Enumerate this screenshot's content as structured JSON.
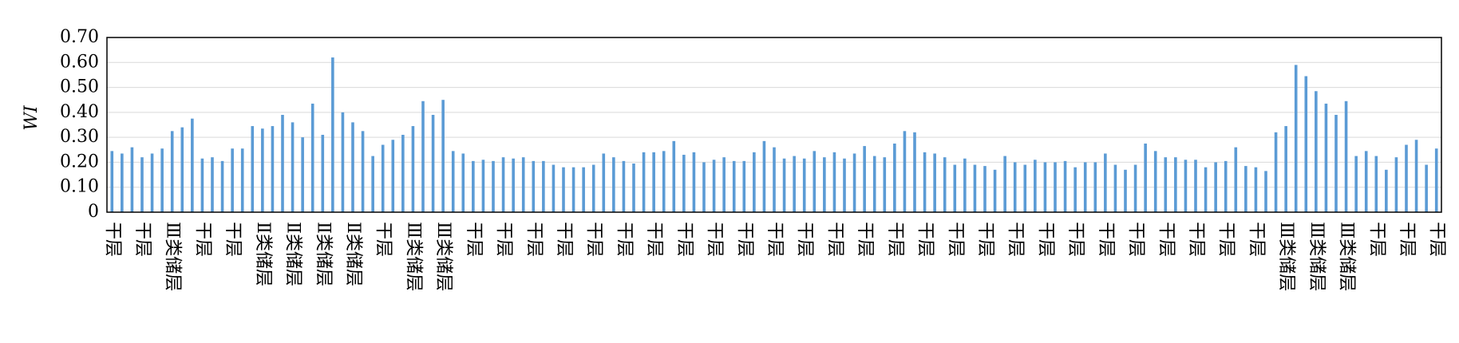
{
  "chart_data": {
    "type": "bar",
    "y_label": "WI",
    "color": "#5b9bd5",
    "grid": true,
    "ylim": [
      0,
      0.7
    ],
    "yticks": [
      0,
      {
        "value": 0.1,
        "label": "0.10"
      },
      {
        "value": 0.2,
        "label": "0.20"
      },
      {
        "value": 0.3,
        "label": "0.30"
      },
      {
        "value": 0.4,
        "label": "0.40"
      },
      {
        "value": 0.5,
        "label": "0.50"
      },
      {
        "value": 0.6,
        "label": "0.60"
      },
      {
        "value": 0.7,
        "label": "0.70"
      }
    ],
    "categories": [
      "干层",
      null,
      null,
      "干层",
      null,
      null,
      "Ⅲ类储层",
      null,
      null,
      "干层",
      null,
      null,
      "干层",
      null,
      null,
      "Ⅱ类储层",
      null,
      null,
      "Ⅱ类储层",
      null,
      null,
      "Ⅱ类储层",
      null,
      null,
      "Ⅱ类储层",
      null,
      null,
      "干层",
      null,
      null,
      "Ⅲ类储层",
      null,
      null,
      "Ⅲ类储层",
      null,
      null,
      "干层",
      null,
      null,
      "干层",
      null,
      null,
      "干层",
      null,
      null,
      "干层",
      null,
      null,
      "干层",
      null,
      null,
      "干层",
      null,
      null,
      "干层",
      null,
      null,
      "干层",
      null,
      null,
      "干层",
      null,
      null,
      "干层",
      null,
      null,
      "干层",
      null,
      null,
      "干层",
      null,
      null,
      "干层",
      null,
      null,
      "干层",
      null,
      null,
      "干层",
      null,
      null,
      "干层",
      null,
      null,
      "干层",
      null,
      null,
      "干层",
      null,
      null,
      "干层",
      null,
      null,
      "干层",
      null,
      null,
      "干层",
      null,
      null,
      "干层",
      null,
      null,
      "干层",
      null,
      null,
      "干层",
      null,
      null,
      "干层",
      null,
      null,
      "干层",
      null,
      null,
      "干层",
      null,
      null,
      "Ⅲ类储层",
      null,
      null,
      "Ⅲ类储层",
      null,
      null,
      "Ⅲ类储层",
      null,
      null,
      "干层",
      null,
      null,
      "干层",
      null,
      null,
      "干层"
    ],
    "values": [
      0.245,
      0.235,
      0.26,
      0.22,
      0.235,
      0.255,
      0.325,
      0.34,
      0.375,
      0.215,
      0.22,
      0.205,
      0.255,
      0.255,
      0.345,
      0.335,
      0.345,
      0.39,
      0.36,
      0.3,
      0.435,
      0.31,
      0.62,
      0.4,
      0.36,
      0.325,
      0.225,
      0.27,
      0.29,
      0.31,
      0.345,
      0.445,
      0.39,
      0.45,
      0.245,
      0.235,
      0.205,
      0.21,
      0.205,
      0.22,
      0.215,
      0.22,
      0.205,
      0.205,
      0.19,
      0.18,
      0.18,
      0.18,
      0.19,
      0.235,
      0.22,
      0.205,
      0.195,
      0.24,
      0.24,
      0.245,
      0.285,
      0.23,
      0.24,
      0.2,
      0.21,
      0.22,
      0.205,
      0.205,
      0.24,
      0.285,
      0.26,
      0.215,
      0.225,
      0.215,
      0.245,
      0.22,
      0.24,
      0.215,
      0.235,
      0.265,
      0.225,
      0.22,
      0.275,
      0.325,
      0.32,
      0.24,
      0.235,
      0.22,
      0.19,
      0.215,
      0.19,
      0.185,
      0.17,
      0.225,
      0.2,
      0.19,
      0.21,
      0.2,
      0.2,
      0.205,
      0.18,
      0.2,
      0.2,
      0.235,
      0.19,
      0.17,
      0.19,
      0.275,
      0.245,
      0.22,
      0.22,
      0.21,
      0.21,
      0.18,
      0.2,
      0.205,
      0.26,
      0.185,
      0.18,
      0.165,
      0.32,
      0.345,
      0.59,
      0.545,
      0.485,
      0.435,
      0.39,
      0.445,
      0.225,
      0.245,
      0.225,
      0.17,
      0.22,
      0.27,
      0.29,
      0.19,
      0.255
    ]
  }
}
